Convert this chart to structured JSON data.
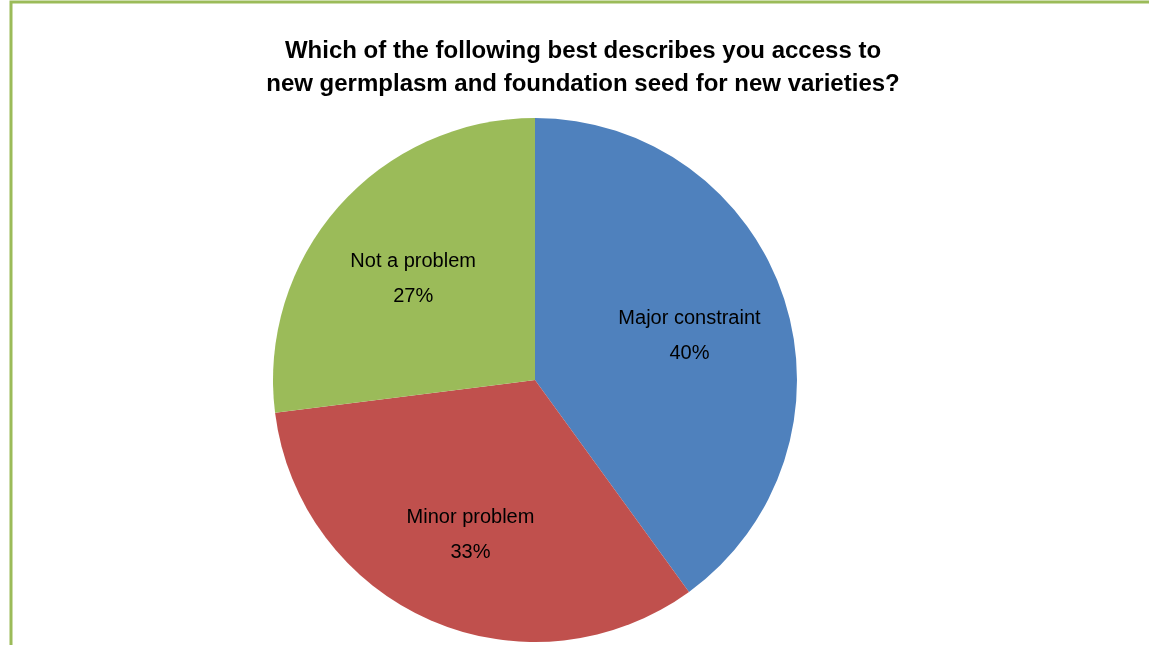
{
  "chart_data": {
    "type": "pie",
    "title": "Which of the following best describes you access to new germplasm and foundation seed for new varieties?",
    "categories": [
      "Major constraint",
      "Minor problem",
      "Not a problem"
    ],
    "values": [
      40,
      33,
      27
    ],
    "colors": [
      "#4f81bd",
      "#c0504d",
      "#9bbb59"
    ],
    "value_labels": [
      "40%",
      "33%",
      "27%"
    ],
    "legend": false
  }
}
